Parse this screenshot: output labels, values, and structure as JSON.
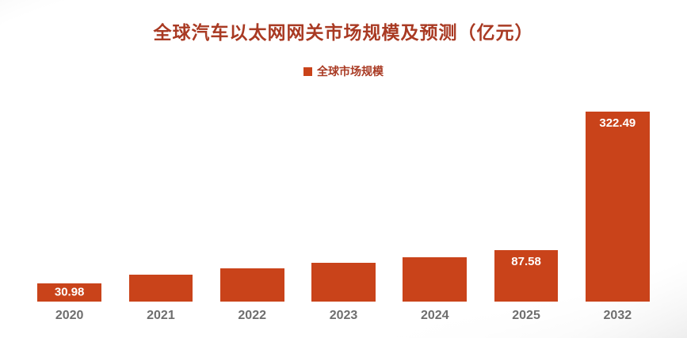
{
  "colors": {
    "bar": "#c9431a",
    "title": "#a93a23",
    "legend_text": "#a93a23",
    "axis_text": "#6e6e6e",
    "data_label": "#ffffff"
  },
  "chart_data": {
    "type": "bar",
    "title": "全球汽车以太网网关市场规模及预测（亿元）",
    "xlabel": "",
    "ylabel": "",
    "legend": [
      "全球市场规模"
    ],
    "legend_position": "top",
    "grid": false,
    "ylim": [
      0,
      330
    ],
    "categories": [
      "2020",
      "2021",
      "2022",
      "2023",
      "2024",
      "2025",
      "2032"
    ],
    "series": [
      {
        "name": "全球市场规模",
        "values": [
          30.98,
          45,
          57,
          66,
          75,
          87.58,
          322.49
        ]
      }
    ],
    "data_labels": [
      "30.98",
      null,
      null,
      null,
      null,
      "87.58",
      "322.49"
    ]
  }
}
